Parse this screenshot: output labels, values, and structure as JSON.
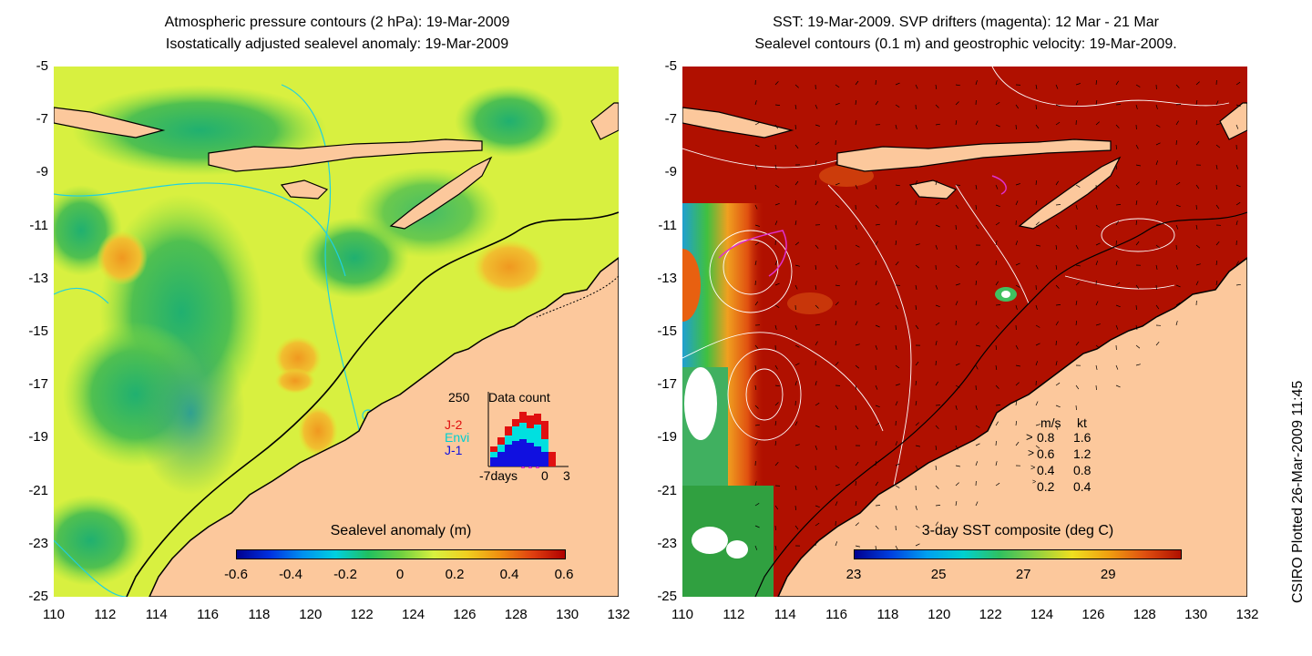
{
  "left_panel": {
    "title_line1": "Atmospheric pressure contours (2 hPa): 19-Mar-2009",
    "title_line2": "Isostatically adjusted sealevel anomaly: 19-Mar-2009",
    "y_ticks": [
      "-5",
      "-7",
      "-9",
      "-11",
      "-13",
      "-15",
      "-17",
      "-19",
      "-21",
      "-23",
      "-25"
    ],
    "x_ticks": [
      "110",
      "112",
      "114",
      "116",
      "118",
      "120",
      "122",
      "124",
      "126",
      "128",
      "130",
      "132"
    ],
    "colorbar": {
      "label": "Sealevel anomaly (m)",
      "ticks": [
        "-0.6",
        "-0.4",
        "-0.2",
        "0",
        "0.2",
        "0.4",
        "0.6"
      ]
    },
    "data_count": {
      "title": "Data count",
      "ymax": "250",
      "x_labels": [
        "-7days",
        "0",
        "3"
      ],
      "legend": [
        {
          "name": "J-2",
          "color": "#e01010"
        },
        {
          "name": "Envi",
          "color": "#00e0e0"
        },
        {
          "name": "J-1",
          "color": "#1010e0"
        }
      ]
    }
  },
  "right_panel": {
    "title_line1": "SST: 19-Mar-2009. SVP drifters (magenta): 12 Mar - 21 Mar",
    "title_line2": "Sealevel contours (0.1 m) and geostrophic velocity: 19-Mar-2009.",
    "y_ticks": [
      "-5",
      "-7",
      "-9",
      "-11",
      "-13",
      "-15",
      "-17",
      "-19",
      "-21",
      "-23",
      "-25"
    ],
    "x_ticks": [
      "110",
      "112",
      "114",
      "116",
      "118",
      "120",
      "122",
      "124",
      "126",
      "128",
      "130",
      "132"
    ],
    "colorbar": {
      "label": "3-day SST composite (deg C)",
      "ticks": [
        "23",
        "25",
        "27",
        "29"
      ]
    },
    "velocity_legend": {
      "header_ms": "m/s",
      "header_kt": "kt",
      "rows": [
        {
          "ms": "0.8",
          "kt": "1.6"
        },
        {
          "ms": "0.6",
          "kt": "1.2"
        },
        {
          "ms": "0.4",
          "kt": "0.8"
        },
        {
          "ms": "0.2",
          "kt": "0.4"
        }
      ]
    }
  },
  "credit": "CSIRO Plotted 26-Mar-2009 11:45",
  "colors": {
    "land": "#fcc89c",
    "sst_warm": "#b01000",
    "ssh_base": "#d8f040",
    "contour_cyan": "#20d0e0",
    "drifter_magenta": "#e030d0"
  }
}
